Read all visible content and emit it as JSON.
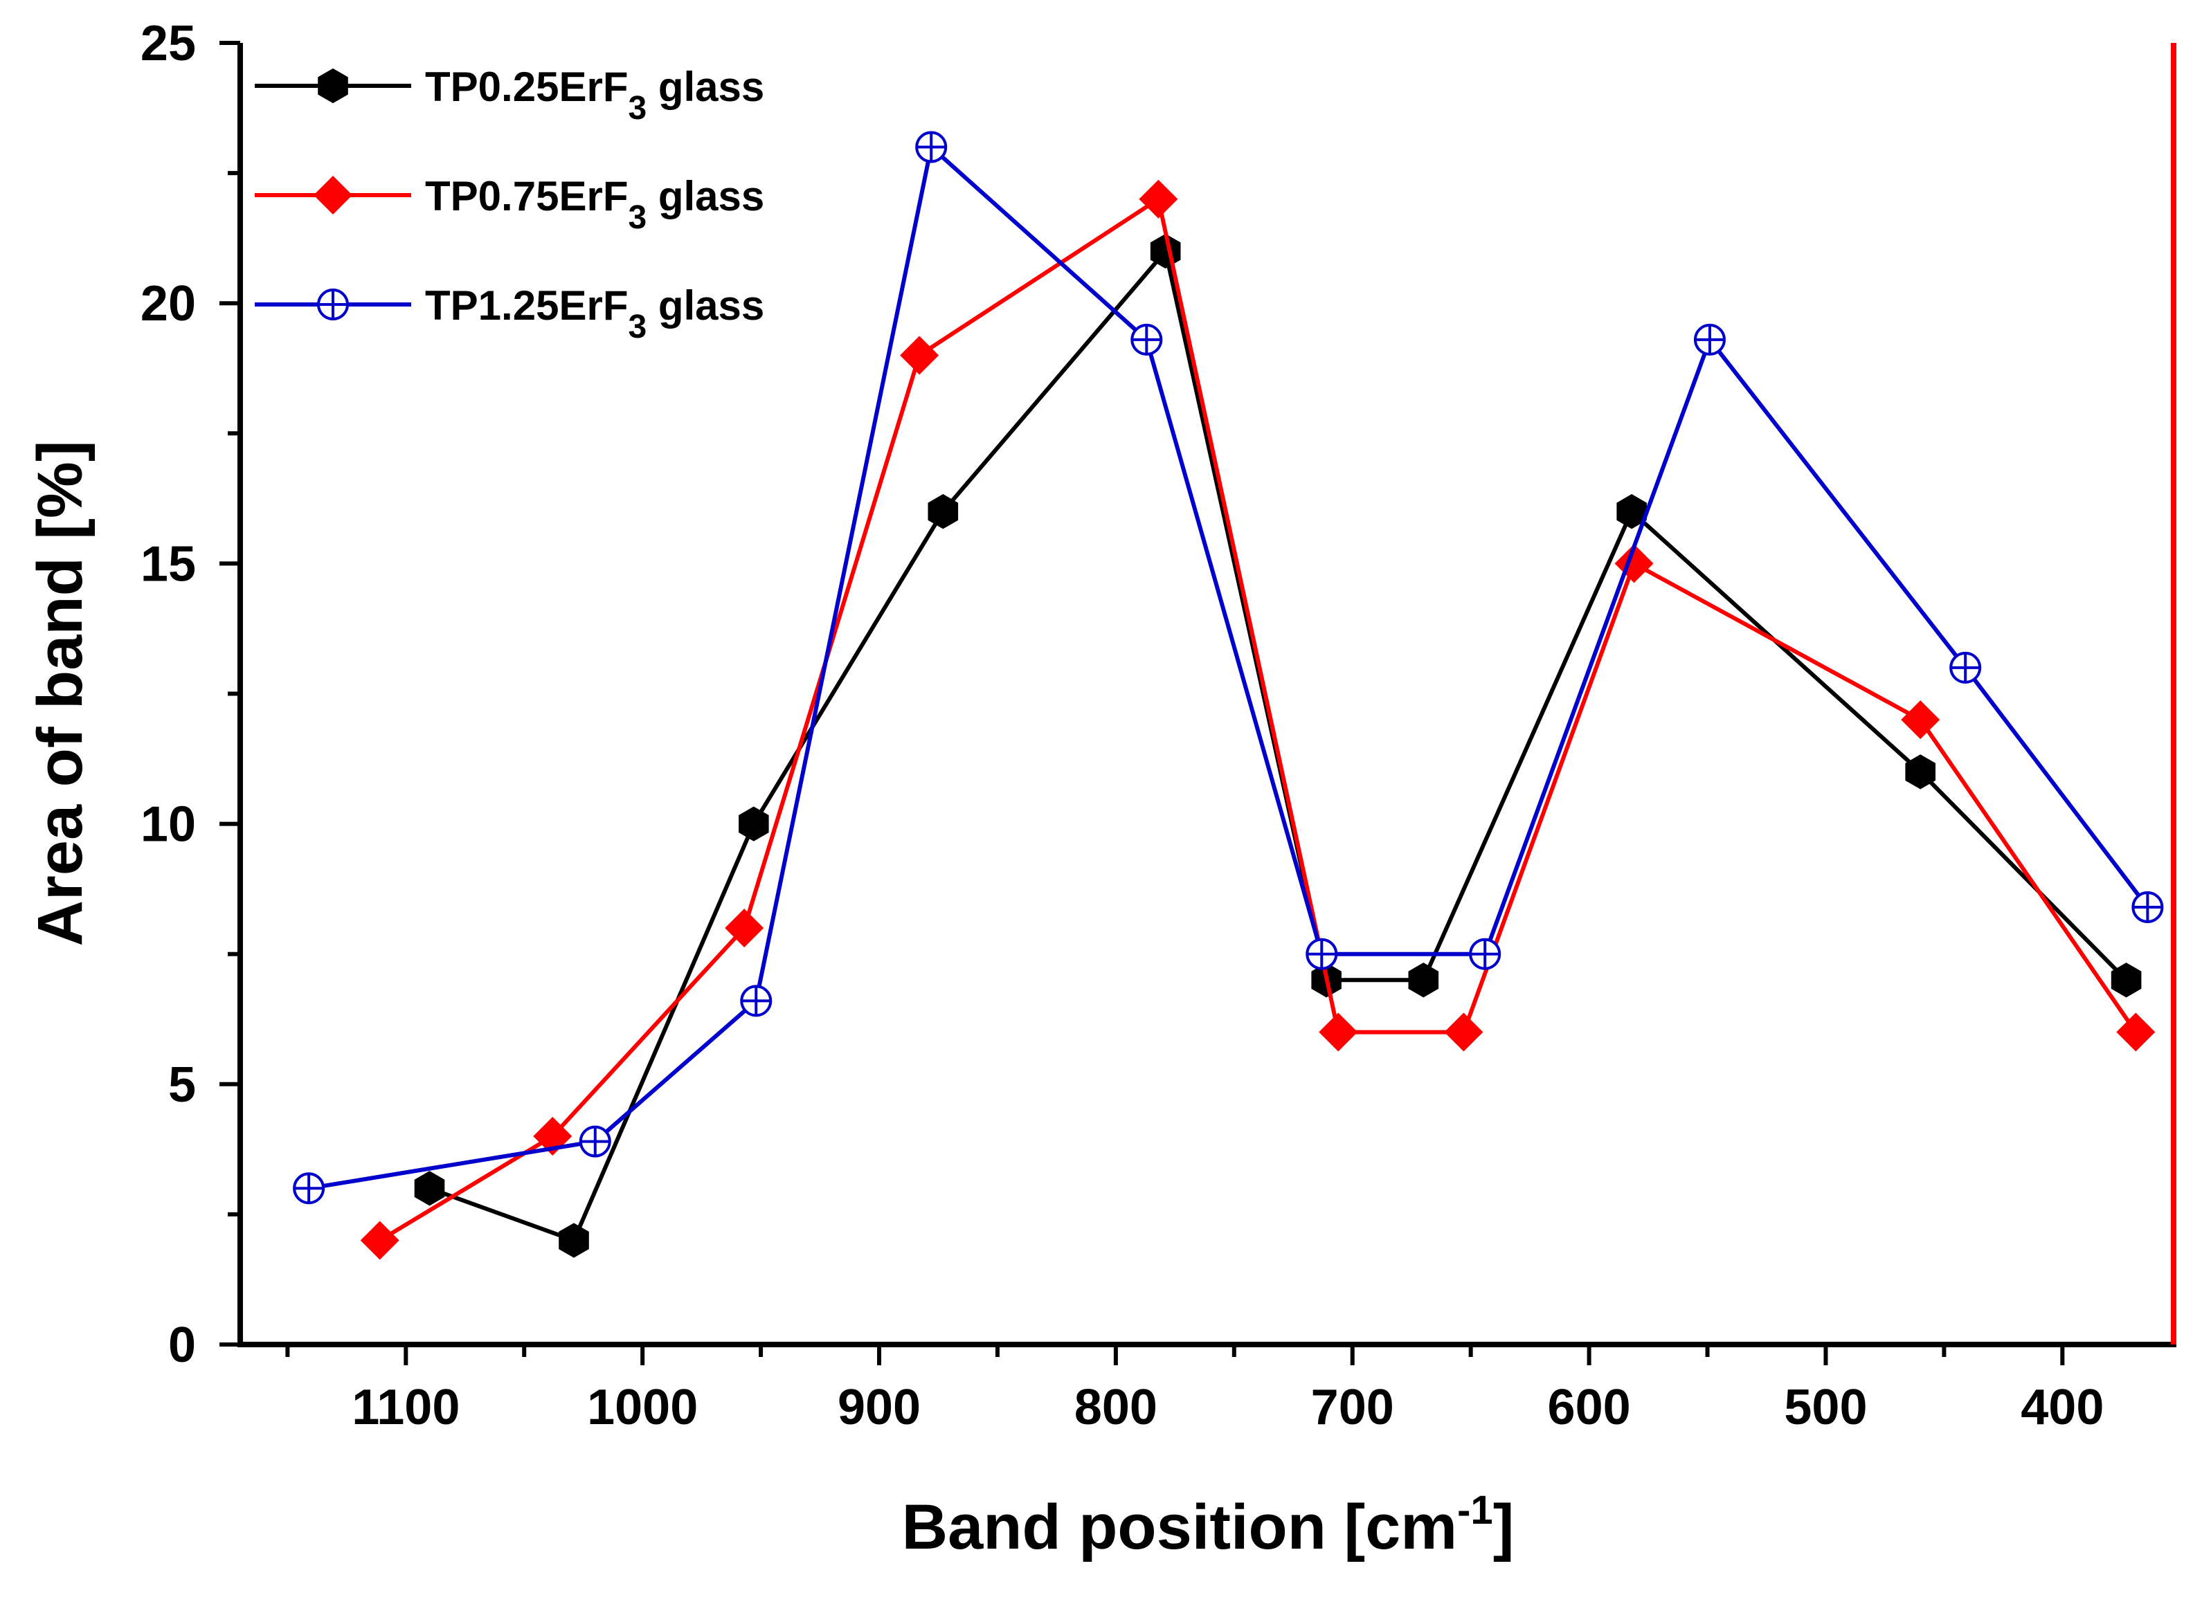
{
  "chart_data": {
    "type": "line",
    "title": "",
    "xlabel": "Band position [cm",
    "xlabel_sup": "-1",
    "xlabel_suffix": "]",
    "ylabel": "Area of band [%]",
    "xlim": [
      1170,
      353
    ],
    "ylim": [
      0,
      25
    ],
    "x_ticks": [
      1100,
      1000,
      900,
      800,
      700,
      600,
      500,
      400
    ],
    "y_ticks": [
      0,
      5,
      10,
      15,
      20,
      25
    ],
    "legend_position": "top-left",
    "series": [
      {
        "name": "TP0.25ErF",
        "sub": "3",
        "suffix": " glass",
        "color": "#000000",
        "marker": "hexagon",
        "x": [
          1090,
          1029,
          953,
          873,
          779,
          711,
          670,
          582,
          460,
          373
        ],
        "y": [
          3,
          2,
          10,
          16,
          21,
          7,
          7,
          16,
          11,
          7
        ]
      },
      {
        "name": "TP0.75ErF",
        "sub": "3",
        "suffix": " glass",
        "color": "#ff0000",
        "marker": "diamond",
        "x": [
          1111,
          1038,
          957,
          883,
          782,
          706,
          653,
          581,
          460,
          369
        ],
        "y": [
          2,
          4,
          8,
          19,
          22,
          6,
          6,
          15,
          12,
          6
        ]
      },
      {
        "name": "TP1.25ErF",
        "sub": "3",
        "suffix": " glass",
        "color": "#0000cc",
        "marker": "circle-plus",
        "x": [
          1141,
          1020,
          952,
          878,
          787,
          713,
          644,
          549,
          441,
          364
        ],
        "y": [
          3,
          3.9,
          6.6,
          23,
          19.3,
          7.5,
          7.5,
          19.3,
          13,
          8.4
        ]
      }
    ]
  }
}
